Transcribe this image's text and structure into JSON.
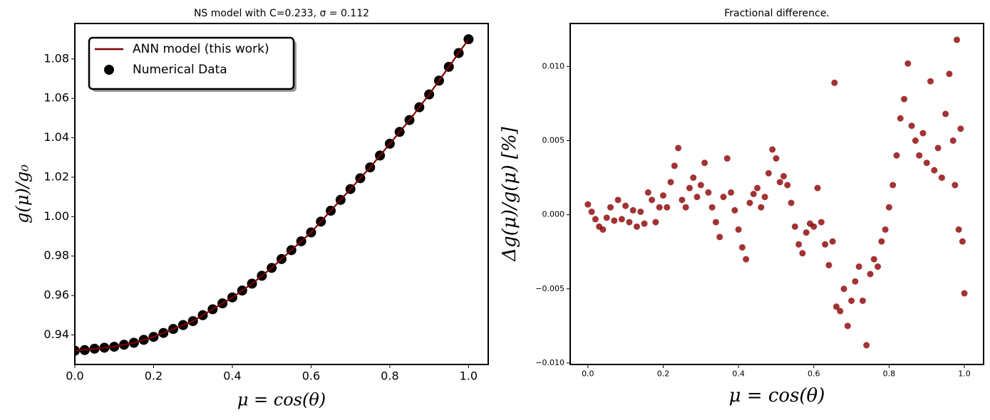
{
  "chart_data": [
    {
      "type": "line",
      "title": "NS model with C=0.233, σ = 0.112",
      "x_label": "μ = cos(θ)",
      "y_label": "g(μ)/g₀",
      "xlim": [
        0,
        1.05
      ],
      "ylim": [
        0.925,
        1.098
      ],
      "xticks": [
        {
          "value": 0,
          "label": "0.0"
        },
        0.2,
        0.4,
        0.6,
        0.8,
        {
          "value": 1,
          "label": "1.0"
        }
      ],
      "yticks": [
        0.94,
        0.96,
        0.98,
        {
          "value": 1,
          "label": "1.00"
        },
        1.02,
        1.04,
        1.06,
        1.08
      ],
      "legend": "upper left",
      "series": [
        {
          "name": "ANN model (this work)",
          "type": "line",
          "color": "#7f0000",
          "x": [
            0,
            0.05,
            0.1,
            0.15,
            0.2,
            0.25,
            0.3,
            0.35,
            0.4,
            0.45,
            0.5,
            0.55,
            0.6,
            0.65,
            0.7,
            0.75,
            0.8,
            0.85,
            0.9,
            0.95,
            1.0
          ],
          "values": [
            0.932,
            0.933,
            0.934,
            0.936,
            0.939,
            0.943,
            0.947,
            0.953,
            0.959,
            0.966,
            0.974,
            0.983,
            0.992,
            1.003,
            1.014,
            1.025,
            1.037,
            1.049,
            1.062,
            1.076,
            1.09
          ]
        },
        {
          "name": "Numerical Data",
          "type": "scatter",
          "color": "#000000",
          "x": [
            0,
            0.025,
            0.05,
            0.075,
            0.1,
            0.125,
            0.15,
            0.175,
            0.2,
            0.225,
            0.25,
            0.275,
            0.3,
            0.325,
            0.35,
            0.375,
            0.4,
            0.425,
            0.45,
            0.475,
            0.5,
            0.525,
            0.55,
            0.575,
            0.6,
            0.625,
            0.65,
            0.675,
            0.7,
            0.725,
            0.75,
            0.775,
            0.8,
            0.825,
            0.85,
            0.875,
            0.9,
            0.925,
            0.95,
            0.975,
            1.0
          ],
          "values": [
            0.932,
            0.9323,
            0.933,
            0.9335,
            0.934,
            0.935,
            0.936,
            0.9375,
            0.939,
            0.941,
            0.943,
            0.945,
            0.947,
            0.95,
            0.953,
            0.956,
            0.959,
            0.9625,
            0.966,
            0.97,
            0.974,
            0.9785,
            0.983,
            0.9875,
            0.992,
            0.9975,
            1.003,
            1.0085,
            1.014,
            1.0195,
            1.025,
            1.031,
            1.037,
            1.043,
            1.049,
            1.0555,
            1.062,
            1.069,
            1.076,
            1.083,
            1.09
          ]
        }
      ]
    },
    {
      "type": "scatter",
      "title": "Fractional difference.",
      "x_label": "μ = cos(θ)",
      "y_label": "Δg(μ)/g(μ)  [%]",
      "xlim": [
        -0.047,
        1.051
      ],
      "ylim": [
        -0.0101,
        0.0129
      ],
      "xticks": [
        {
          "value": 0,
          "label": "0.0"
        },
        0.2,
        0.4,
        0.6,
        0.8,
        {
          "value": 1,
          "label": "1.0"
        }
      ],
      "yticks": [
        {
          "value": -0.01,
          "label": "−0.010"
        },
        {
          "value": -0.005,
          "label": "−0.005"
        },
        {
          "value": 0,
          "label": "0.000"
        },
        {
          "value": 0.005,
          "label": "0.005"
        },
        {
          "value": 0.01,
          "label": "0.010"
        }
      ],
      "series": [
        {
          "color": "#8b0000",
          "x": [
            0,
            0.01,
            0.02,
            0.03,
            0.04,
            0.05,
            0.06,
            0.07,
            0.08,
            0.09,
            0.1,
            0.11,
            0.12,
            0.13,
            0.14,
            0.15,
            0.16,
            0.17,
            0.18,
            0.19,
            0.2,
            0.21,
            0.22,
            0.23,
            0.24,
            0.25,
            0.26,
            0.27,
            0.28,
            0.29,
            0.3,
            0.31,
            0.32,
            0.33,
            0.34,
            0.35,
            0.36,
            0.37,
            0.38,
            0.39,
            0.4,
            0.41,
            0.42,
            0.43,
            0.44,
            0.45,
            0.46,
            0.47,
            0.48,
            0.49,
            0.5,
            0.51,
            0.52,
            0.53,
            0.54,
            0.55,
            0.56,
            0.57,
            0.58,
            0.59,
            0.6,
            0.61,
            0.62,
            0.63,
            0.64,
            0.65,
            0.655,
            0.66,
            0.67,
            0.68,
            0.69,
            0.7,
            0.71,
            0.72,
            0.73,
            0.74,
            0.75,
            0.76,
            0.77,
            0.78,
            0.79,
            0.8,
            0.81,
            0.82,
            0.83,
            0.84,
            0.85,
            0.86,
            0.87,
            0.88,
            0.89,
            0.9,
            0.91,
            0.92,
            0.93,
            0.94,
            0.95,
            0.96,
            0.97,
            0.975,
            0.98,
            0.985,
            0.99,
            0.995,
            1.0
          ],
          "values": [
            0.0007,
            0.0002,
            -0.0003,
            -0.0008,
            -0.001,
            -0.0002,
            0.0005,
            -0.0004,
            0.001,
            -0.0003,
            0.0006,
            -0.0005,
            0.0003,
            -0.0008,
            0.0002,
            -0.0006,
            0.0015,
            0.001,
            -0.0005,
            0.0005,
            0.0013,
            0.0005,
            0.0022,
            0.0033,
            0.0045,
            0.001,
            0.0005,
            0.0018,
            0.0025,
            0.0012,
            0.002,
            0.0035,
            0.0015,
            0.0005,
            -0.0005,
            -0.0015,
            0.0012,
            0.0038,
            0.0015,
            0.0003,
            -0.001,
            -0.0022,
            -0.003,
            0.0008,
            0.0014,
            0.0018,
            0.0005,
            0.0012,
            0.0028,
            0.0044,
            0.0038,
            0.0022,
            0.0026,
            0.002,
            0.0008,
            -0.0008,
            -0.002,
            -0.0026,
            -0.0012,
            -0.0006,
            -0.0008,
            0.0018,
            -0.0005,
            -0.002,
            -0.0034,
            -0.0018,
            0.0089,
            -0.0062,
            -0.0065,
            -0.005,
            -0.0075,
            -0.0058,
            -0.0045,
            -0.0035,
            -0.0058,
            -0.0088,
            -0.004,
            -0.003,
            -0.0035,
            -0.0018,
            -0.001,
            0.0005,
            0.002,
            0.004,
            0.0065,
            0.0078,
            0.0102,
            0.006,
            0.005,
            0.004,
            0.0055,
            0.0035,
            0.009,
            0.003,
            0.0045,
            0.0025,
            0.0068,
            0.0095,
            0.005,
            0.002,
            0.0118,
            -0.001,
            0.0058,
            -0.0018,
            -0.0053
          ]
        }
      ]
    }
  ]
}
